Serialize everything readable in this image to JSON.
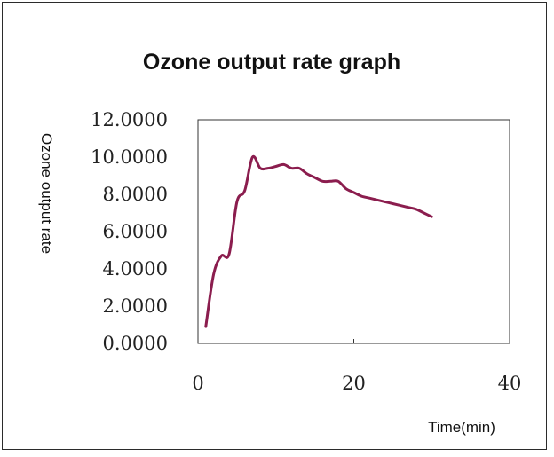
{
  "chart_data": {
    "type": "line",
    "title": "Ozone output rate graph",
    "xlabel": "Time(min)",
    "ylabel": "Ozone output rate",
    "xlim": [
      0,
      40
    ],
    "ylim": [
      0,
      12
    ],
    "x_ticks": [
      "0",
      "20",
      "40"
    ],
    "y_ticks": [
      "0.0000",
      "2.0000",
      "4.0000",
      "6.0000",
      "8.0000",
      "10.0000",
      "12.0000"
    ],
    "grid": false,
    "legend": "none",
    "series": [
      {
        "color": "#8b1d4e",
        "x": [
          1,
          2,
          3,
          4,
          5,
          6,
          7,
          8,
          9,
          10,
          11,
          12,
          13,
          14,
          15,
          16,
          17,
          18,
          19,
          20,
          21,
          22,
          23,
          24,
          25,
          26,
          27,
          28,
          29,
          30
        ],
        "y": [
          0.9,
          3.7,
          4.7,
          4.8,
          7.6,
          8.2,
          10.0,
          9.4,
          9.4,
          9.5,
          9.6,
          9.4,
          9.4,
          9.1,
          8.9,
          8.7,
          8.7,
          8.7,
          8.3,
          8.1,
          7.9,
          7.8,
          7.7,
          7.6,
          7.5,
          7.4,
          7.3,
          7.2,
          7.0,
          6.8
        ]
      }
    ]
  }
}
